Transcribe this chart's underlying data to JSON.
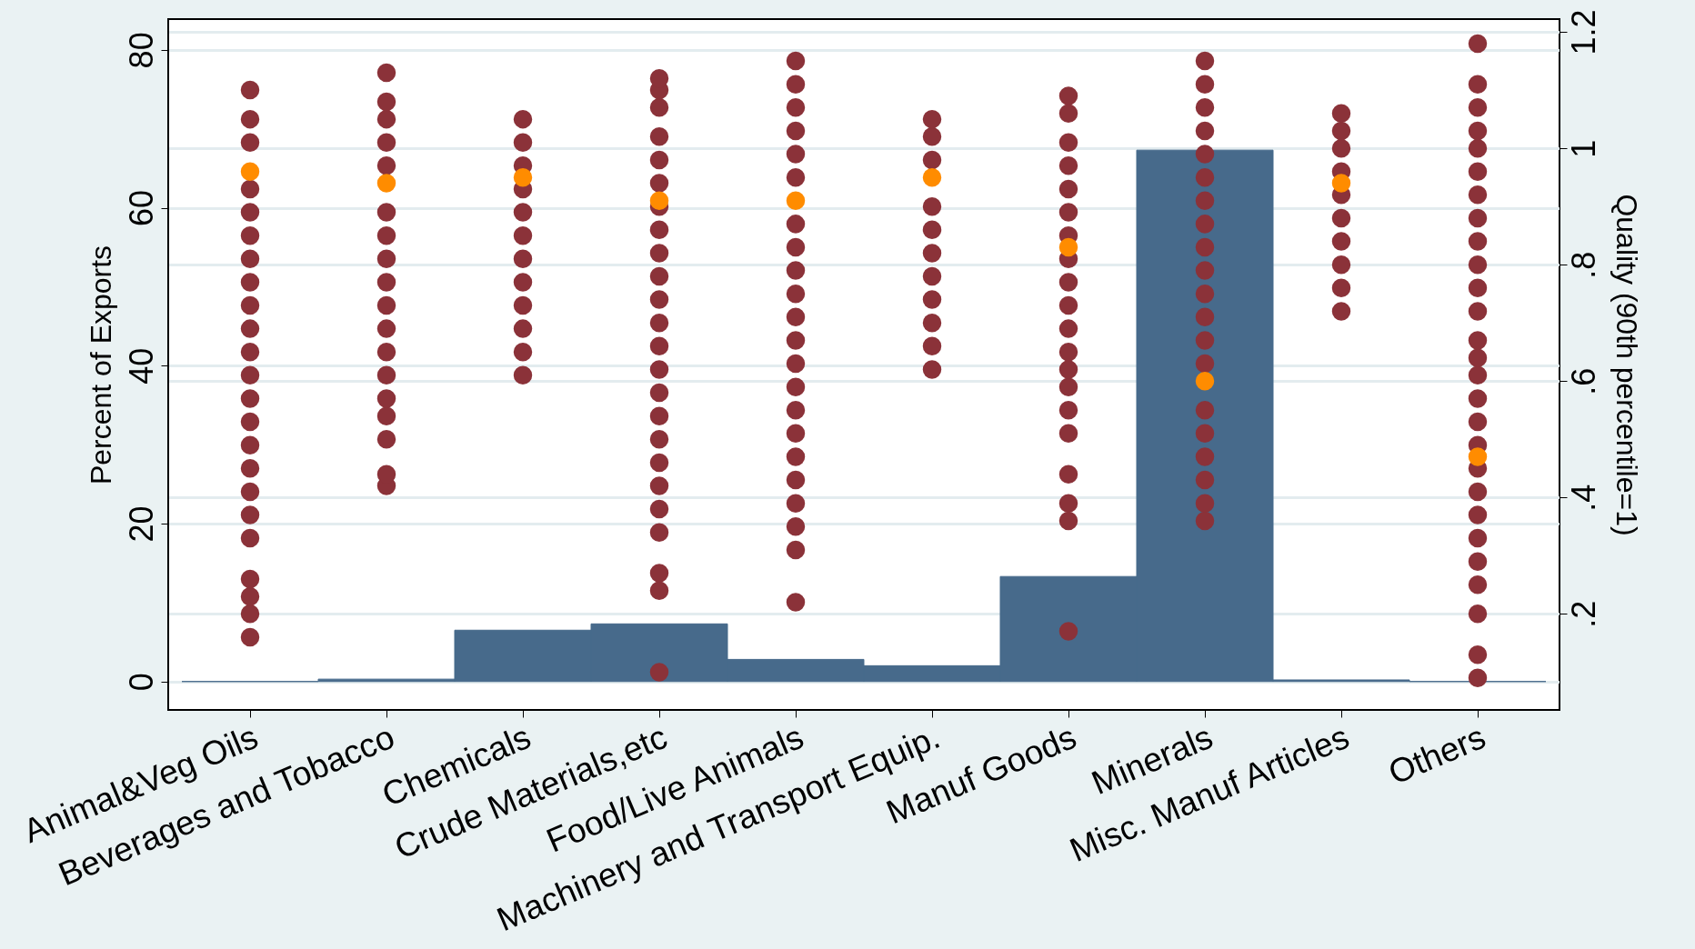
{
  "chart_data": {
    "type": "bar",
    "ylabel": "Percent of Exports",
    "y2label": "Quality (90th percentile=1)",
    "categories": [
      "Animal&Veg Oils",
      "Beverages and Tobacco",
      "Chemicals",
      "Crude Materials,etc",
      "Food/Live Animals",
      "Machinery and Transport Equip.",
      "Manuf Goods",
      "Minerals",
      "Misc. Manuf Articles",
      "Others"
    ],
    "ylim": [
      -3.6,
      83.9
    ],
    "yticks": [
      0,
      20,
      40,
      60,
      80
    ],
    "y2lim": [
      0.035,
      1.222
    ],
    "y2ticks": [
      {
        "value": 0.2,
        "label": ".2"
      },
      {
        "value": 0.4,
        "label": ".4"
      },
      {
        "value": 0.6,
        "label": ".6"
      },
      {
        "value": 0.8,
        "label": ".8"
      },
      1,
      {
        "value": 1.2,
        "label": "1.2"
      }
    ],
    "grid": true,
    "marker": "circle",
    "series": [
      {
        "color": "#476a8b",
        "values": [
          0,
          0.3,
          6.5,
          7.3,
          2.8,
          2,
          13.3,
          67.3,
          0.2,
          0
        ]
      },
      {
        "type": "scatter",
        "axis": "y2",
        "color": "#8b3239",
        "x": [
          "Animal&Veg Oils",
          "Animal&Veg Oils",
          "Animal&Veg Oils",
          "Animal&Veg Oils",
          "Animal&Veg Oils",
          "Animal&Veg Oils",
          "Animal&Veg Oils",
          "Animal&Veg Oils",
          "Animal&Veg Oils",
          "Animal&Veg Oils",
          "Animal&Veg Oils",
          "Animal&Veg Oils",
          "Animal&Veg Oils",
          "Animal&Veg Oils",
          "Animal&Veg Oils",
          "Animal&Veg Oils",
          "Animal&Veg Oils",
          "Animal&Veg Oils",
          "Animal&Veg Oils",
          "Animal&Veg Oils",
          "Animal&Veg Oils",
          "Animal&Veg Oils",
          "Animal&Veg Oils",
          "Animal&Veg Oils",
          "Beverages and Tobacco",
          "Beverages and Tobacco",
          "Beverages and Tobacco",
          "Beverages and Tobacco",
          "Beverages and Tobacco",
          "Beverages and Tobacco",
          "Beverages and Tobacco",
          "Beverages and Tobacco",
          "Beverages and Tobacco",
          "Beverages and Tobacco",
          "Beverages and Tobacco",
          "Beverages and Tobacco",
          "Beverages and Tobacco",
          "Beverages and Tobacco",
          "Beverages and Tobacco",
          "Beverages and Tobacco",
          "Beverages and Tobacco",
          "Beverages and Tobacco",
          "Beverages and Tobacco",
          "Chemicals",
          "Chemicals",
          "Chemicals",
          "Chemicals",
          "Chemicals",
          "Chemicals",
          "Chemicals",
          "Chemicals",
          "Chemicals",
          "Chemicals",
          "Chemicals",
          "Chemicals",
          "Crude Materials,etc",
          "Crude Materials,etc",
          "Crude Materials,etc",
          "Crude Materials,etc",
          "Crude Materials,etc",
          "Crude Materials,etc",
          "Crude Materials,etc",
          "Crude Materials,etc",
          "Crude Materials,etc",
          "Crude Materials,etc",
          "Crude Materials,etc",
          "Crude Materials,etc",
          "Crude Materials,etc",
          "Crude Materials,etc",
          "Crude Materials,etc",
          "Crude Materials,etc",
          "Crude Materials,etc",
          "Crude Materials,etc",
          "Crude Materials,etc",
          "Crude Materials,etc",
          "Crude Materials,etc",
          "Crude Materials,etc",
          "Crude Materials,etc",
          "Crude Materials,etc",
          "Food/Live Animals",
          "Food/Live Animals",
          "Food/Live Animals",
          "Food/Live Animals",
          "Food/Live Animals",
          "Food/Live Animals",
          "Food/Live Animals",
          "Food/Live Animals",
          "Food/Live Animals",
          "Food/Live Animals",
          "Food/Live Animals",
          "Food/Live Animals",
          "Food/Live Animals",
          "Food/Live Animals",
          "Food/Live Animals",
          "Food/Live Animals",
          "Food/Live Animals",
          "Food/Live Animals",
          "Food/Live Animals",
          "Food/Live Animals",
          "Food/Live Animals",
          "Food/Live Animals",
          "Food/Live Animals",
          "Machinery and Transport Equip.",
          "Machinery and Transport Equip.",
          "Machinery and Transport Equip.",
          "Machinery and Transport Equip.",
          "Machinery and Transport Equip.",
          "Machinery and Transport Equip.",
          "Machinery and Transport Equip.",
          "Machinery and Transport Equip.",
          "Machinery and Transport Equip.",
          "Machinery and Transport Equip.",
          "Machinery and Transport Equip.",
          "Machinery and Transport Equip.",
          "Manuf Goods",
          "Manuf Goods",
          "Manuf Goods",
          "Manuf Goods",
          "Manuf Goods",
          "Manuf Goods",
          "Manuf Goods",
          "Manuf Goods",
          "Manuf Goods",
          "Manuf Goods",
          "Manuf Goods",
          "Manuf Goods",
          "Manuf Goods",
          "Manuf Goods",
          "Manuf Goods",
          "Manuf Goods",
          "Manuf Goods",
          "Manuf Goods",
          "Manuf Goods",
          "Manuf Goods",
          "Minerals",
          "Minerals",
          "Minerals",
          "Minerals",
          "Minerals",
          "Minerals",
          "Minerals",
          "Minerals",
          "Minerals",
          "Minerals",
          "Minerals",
          "Minerals",
          "Minerals",
          "Minerals",
          "Minerals",
          "Minerals",
          "Minerals",
          "Minerals",
          "Minerals",
          "Minerals",
          "Minerals",
          "Misc. Manuf Articles",
          "Misc. Manuf Articles",
          "Misc. Manuf Articles",
          "Misc. Manuf Articles",
          "Misc. Manuf Articles",
          "Misc. Manuf Articles",
          "Misc. Manuf Articles",
          "Misc. Manuf Articles",
          "Misc. Manuf Articles",
          "Misc. Manuf Articles",
          "Others",
          "Others",
          "Others",
          "Others",
          "Others",
          "Others",
          "Others",
          "Others",
          "Others",
          "Others",
          "Others",
          "Others",
          "Others",
          "Others",
          "Others",
          "Others",
          "Others",
          "Others",
          "Others",
          "Others",
          "Others",
          "Others",
          "Others",
          "Others",
          "Others",
          "Others",
          "Others"
        ],
        "values": [
          0.16,
          0.2,
          0.23,
          0.26,
          0.33,
          0.37,
          0.41,
          0.45,
          0.49,
          0.53,
          0.57,
          0.61,
          0.65,
          0.69,
          0.73,
          0.77,
          0.81,
          0.85,
          0.89,
          0.93,
          null,
          1.01,
          1.05,
          1.1,
          0.42,
          0.44,
          0.5,
          0.54,
          0.57,
          0.61,
          0.65,
          0.69,
          0.73,
          0.77,
          0.81,
          0.85,
          0.89,
          null,
          0.97,
          1.01,
          1.05,
          1.08,
          1.13,
          0.61,
          0.65,
          0.69,
          0.73,
          0.77,
          0.81,
          0.85,
          0.89,
          0.93,
          0.97,
          1.01,
          1.05,
          0.1,
          0.24,
          0.27,
          0.34,
          0.38,
          0.42,
          0.46,
          0.5,
          0.54,
          0.58,
          0.62,
          0.66,
          0.7,
          0.74,
          0.78,
          0.82,
          0.86,
          0.9,
          0.94,
          0.98,
          1.02,
          1.07,
          1.1,
          1.12,
          0.22,
          0.31,
          0.35,
          0.39,
          0.43,
          0.47,
          0.51,
          0.55,
          0.59,
          0.63,
          0.67,
          0.71,
          0.75,
          0.79,
          0.83,
          0.87,
          null,
          0.95,
          0.99,
          1.03,
          1.07,
          1.11,
          1.15,
          0.62,
          0.66,
          0.7,
          0.74,
          0.78,
          0.82,
          0.86,
          0.9,
          null,
          0.98,
          1.02,
          1.05,
          0.17,
          0.36,
          0.39,
          0.44,
          0.51,
          0.55,
          0.59,
          0.62,
          0.65,
          0.69,
          0.73,
          0.77,
          0.81,
          0.85,
          0.89,
          0.93,
          0.97,
          1.01,
          1.06,
          1.09,
          0.36,
          0.39,
          0.43,
          0.47,
          0.51,
          0.55,
          null,
          0.63,
          0.67,
          0.71,
          0.75,
          0.79,
          0.83,
          0.87,
          0.91,
          0.95,
          0.99,
          1.03,
          1.07,
          1.11,
          1.15,
          0.72,
          0.76,
          0.8,
          0.84,
          0.88,
          0.92,
          0.96,
          1,
          1.03,
          1.06,
          0.09,
          0.13,
          0.2,
          0.25,
          0.29,
          0.33,
          0.37,
          0.41,
          0.45,
          0.49,
          0.53,
          0.57,
          0.61,
          0.64,
          0.67,
          0.72,
          0.76,
          0.8,
          0.84,
          0.88,
          0.92,
          0.96,
          1,
          1.03,
          1.07,
          1.11,
          1.18
        ]
      },
      {
        "type": "scatter",
        "axis": "y2",
        "color": "#ff8c00",
        "x": [
          "Animal&Veg Oils",
          "Beverages and Tobacco",
          "Chemicals",
          "Crude Materials,etc",
          "Food/Live Animals",
          "Machinery and Transport Equip.",
          "Manuf Goods",
          "Minerals",
          "Misc. Manuf Articles",
          "Others"
        ],
        "values": [
          0.96,
          0.94,
          0.95,
          0.91,
          0.91,
          0.95,
          0.83,
          0.6,
          0.94,
          0.47
        ]
      }
    ]
  }
}
